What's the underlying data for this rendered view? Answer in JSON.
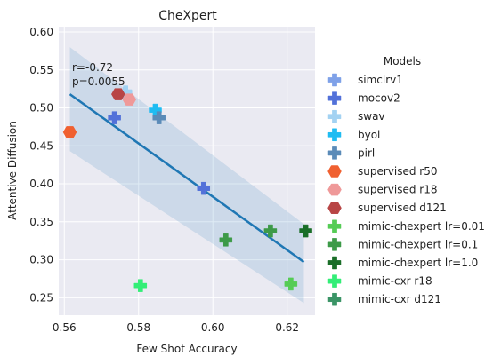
{
  "chart_data": {
    "type": "scatter",
    "title": "CheXpert",
    "xlabel": "Few Shot Accuracy",
    "ylabel": "Attentive Diffusion",
    "xlim": [
      0.5585,
      0.6275
    ],
    "ylim": [
      0.227,
      0.607
    ],
    "xticks": [
      0.56,
      0.58,
      0.6,
      0.62
    ],
    "xtick_labels": [
      "0.56",
      "0.58",
      "0.60",
      "0.62"
    ],
    "yticks": [
      0.25,
      0.3,
      0.35,
      0.4,
      0.45,
      0.5,
      0.55,
      0.6
    ],
    "ytick_labels": [
      "0.25",
      "0.30",
      "0.35",
      "0.40",
      "0.45",
      "0.50",
      "0.55",
      "0.60"
    ],
    "grid": true,
    "legend": {
      "title": "Models",
      "placement": "right-outside"
    },
    "annotations": [
      "r=-0.72",
      "p=0.0055"
    ],
    "regression": {
      "x": [
        0.5615,
        0.6245
      ],
      "y": [
        0.518,
        0.297
      ],
      "band_upper": [
        0.58,
        0.347
      ],
      "band_lower": [
        0.443,
        0.243
      ]
    },
    "series": [
      {
        "name": "simclrv1",
        "marker": "plus",
        "color": "#7fa1e8",
        "points": [
          [
            0.5765,
            0.519
          ]
        ]
      },
      {
        "name": "mocov2",
        "marker": "plus",
        "color": "#5271d9",
        "points": [
          [
            0.5735,
            0.487
          ],
          [
            0.5975,
            0.394
          ]
        ]
      },
      {
        "name": "swav",
        "marker": "plus",
        "color": "#a3d2f2",
        "points": [
          [
            0.5765,
            0.521
          ]
        ]
      },
      {
        "name": "byol",
        "marker": "plus",
        "color": "#1fbcf2",
        "points": [
          [
            0.5845,
            0.497
          ]
        ]
      },
      {
        "name": "pirl",
        "marker": "plus",
        "color": "#5b8bb8",
        "points": [
          [
            0.5855,
            0.487
          ]
        ]
      },
      {
        "name": "supervised r50",
        "marker": "hexagon",
        "color": "#f06030",
        "points": [
          [
            0.5615,
            0.468
          ]
        ]
      },
      {
        "name": "supervised r18",
        "marker": "hexagon",
        "color": "#ef9999",
        "points": [
          [
            0.5775,
            0.511
          ]
        ]
      },
      {
        "name": "supervised d121",
        "marker": "hexagon",
        "color": "#b84545",
        "points": [
          [
            0.5745,
            0.518
          ]
        ]
      },
      {
        "name": "mimic-chexpert lr=0.01",
        "marker": "plus",
        "color": "#55cc55",
        "points": [
          [
            0.621,
            0.268
          ]
        ]
      },
      {
        "name": "mimic-chexpert lr=0.1",
        "marker": "plus",
        "color": "#3d9a48",
        "points": [
          [
            0.6035,
            0.326
          ],
          [
            0.6155,
            0.338
          ]
        ]
      },
      {
        "name": "mimic-chexpert lr=1.0",
        "marker": "plus",
        "color": "#1a6e28",
        "points": [
          [
            0.625,
            0.338
          ]
        ]
      },
      {
        "name": "mimic-cxr r18",
        "marker": "plus",
        "color": "#33ee77",
        "points": [
          [
            0.5805,
            0.266
          ]
        ]
      },
      {
        "name": "mimic-cxr d121",
        "marker": "plus",
        "color": "#3a9466",
        "points": []
      }
    ]
  }
}
